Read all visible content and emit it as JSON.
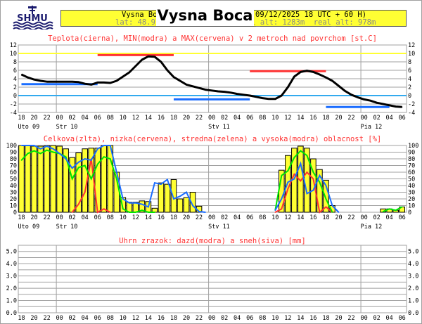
{
  "header": {
    "logo_text": "SHMU",
    "title": "Vysna Boca",
    "line1_left": "Vysna Bo",
    "line1_right": "09/12/2025 18 UTC + 60 H)",
    "line2_left": "lat: 48.92",
    "line2_right": "model_alt: 1283m  real_alt: 978m"
  },
  "colors": {
    "red": "#ff3333",
    "blue": "#1a6dff",
    "green": "#00e600",
    "yellow": "#ffff33",
    "black": "#000000",
    "grid": "#a0a0a0",
    "cyan": "#33aaee"
  },
  "x_axis": {
    "hour_labels": [
      "18",
      "20",
      "22",
      "00",
      "02",
      "04",
      "06",
      "08",
      "10",
      "12",
      "14",
      "16",
      "18",
      "20",
      "22",
      "00",
      "02",
      "04",
      "06",
      "08",
      "10",
      "12",
      "14",
      "16",
      "18",
      "20",
      "22",
      "00",
      "02",
      "04",
      "06"
    ],
    "days": [
      {
        "label": "Uto 09",
        "hour_index": 0
      },
      {
        "label": "Str 10",
        "hour_index": 6
      },
      {
        "label": "Stv 11",
        "hour_index": 30
      },
      {
        "label": "Pia 12",
        "hour_index": 54
      }
    ],
    "midnights": [
      6,
      30,
      54
    ]
  },
  "chart_data": [
    {
      "type": "line",
      "title": "Teplota(cierna), MIN(modra) a MAX(cervena) v 2 metroch nad povrchom [st.C]",
      "ylim": [
        -4,
        12
      ],
      "yticks": [
        "12",
        "10",
        "8",
        "6",
        "4",
        "2",
        "0",
        "-2",
        "-4"
      ],
      "reference_lines": [
        {
          "value": 10,
          "color": "yellow"
        },
        {
          "value": 0,
          "color": "cyan"
        }
      ],
      "temperature": [
        5.0,
        4.3,
        3.8,
        3.5,
        3.3,
        3.3,
        3.3,
        3.3,
        3.3,
        3.2,
        2.8,
        2.6,
        3.1,
        3.1,
        3.0,
        3.5,
        4.5,
        5.5,
        7.0,
        8.5,
        9.3,
        9.2,
        8.0,
        6.0,
        4.4,
        3.5,
        2.6,
        2.2,
        1.8,
        1.4,
        1.2,
        1.0,
        0.9,
        0.7,
        0.4,
        0.2,
        0.0,
        -0.3,
        -0.6,
        -0.8,
        -0.8,
        0.0,
        2.0,
        4.5,
        5.6,
        5.9,
        5.6,
        5.0,
        4.3,
        3.5,
        2.3,
        1.1,
        0.2,
        -0.4,
        -0.9,
        -1.2,
        -1.7,
        -2.0,
        -2.3,
        -2.6,
        -2.7
      ],
      "min_max": [
        {
          "kind": "min",
          "value": 2.7,
          "from_hour": 0,
          "to_hour": 12
        },
        {
          "kind": "max",
          "value": 9.6,
          "from_hour": 12,
          "to_hour": 24
        },
        {
          "kind": "min",
          "value": -0.9,
          "from_hour": 24,
          "to_hour": 36
        },
        {
          "kind": "max",
          "value": 5.8,
          "from_hour": 36,
          "to_hour": 48
        },
        {
          "kind": "min",
          "value": -2.7,
          "from_hour": 48,
          "to_hour": 58
        }
      ]
    },
    {
      "type": "bar",
      "title": "Celkova(zlta), nizka(cervena), stredna(zelena) a vysoka(modra) oblacnost [%]",
      "ylim": [
        0,
        100
      ],
      "yticks": [
        "100",
        "90",
        "80",
        "70",
        "60",
        "50",
        "40",
        "30",
        "20",
        "10",
        "0"
      ],
      "total": {
        "start_hours": [
          0,
          41,
          57
        ],
        "values": [
          [
            100,
            100,
            99,
            99,
            100,
            100,
            99,
            95,
            82,
            89,
            95,
            96,
            96,
            100,
            100,
            60,
            22,
            15,
            15,
            17,
            16,
            6,
            44,
            42,
            49,
            20,
            22,
            30,
            9
          ],
          [
            63,
            85,
            96,
            99,
            96,
            80,
            64,
            48,
            10
          ],
          [
            5,
            5,
            3,
            8
          ]
        ]
      },
      "low": {
        "segments": [
          {
            "start": 8,
            "values": [
              0,
              12,
              30,
              80,
              0,
              5,
              0
            ]
          },
          {
            "start": 40,
            "values": [
              0,
              5,
              35,
              57,
              47,
              60,
              50,
              0,
              8,
              0
            ]
          }
        ]
      },
      "mid": {
        "segments": [
          {
            "start": 0,
            "values": [
              78,
              88,
              92,
              88,
              93,
              90,
              88,
              83,
              50,
              67,
              70,
              50,
              72,
              83,
              80,
              50,
              5,
              0,
              0,
              3,
              0,
              0
            ]
          },
          {
            "start": 40,
            "values": [
              3,
              55,
              62,
              82,
              92,
              85,
              60,
              45,
              20,
              0
            ]
          },
          {
            "start": 57,
            "values": [
              1,
              5,
              3,
              8
            ]
          }
        ]
      },
      "high": {
        "segments": [
          {
            "start": 0,
            "values": [
              100,
              100,
              100,
              95,
              99,
              95,
              88,
              80,
              66,
              75,
              80,
              78,
              95,
              100,
              100,
              60,
              20,
              14,
              14,
              12,
              8,
              44,
              42,
              49,
              20,
              24,
              30,
              10,
              1,
              0
            ]
          },
          {
            "start": 40,
            "values": [
              3,
              20,
              45,
              50,
              73,
              28,
              33,
              55,
              40,
              10,
              0
            ]
          }
        ]
      }
    },
    {
      "type": "bar",
      "title": "Uhrn zrazok: dazd(modra) a sneh(siva) [mm]",
      "ylim": [
        0,
        5.5
      ],
      "yticks": [
        "5.0",
        "4.0",
        "3.0",
        "2.0",
        "1.0",
        "0.0"
      ],
      "rain": [],
      "snow": []
    }
  ]
}
